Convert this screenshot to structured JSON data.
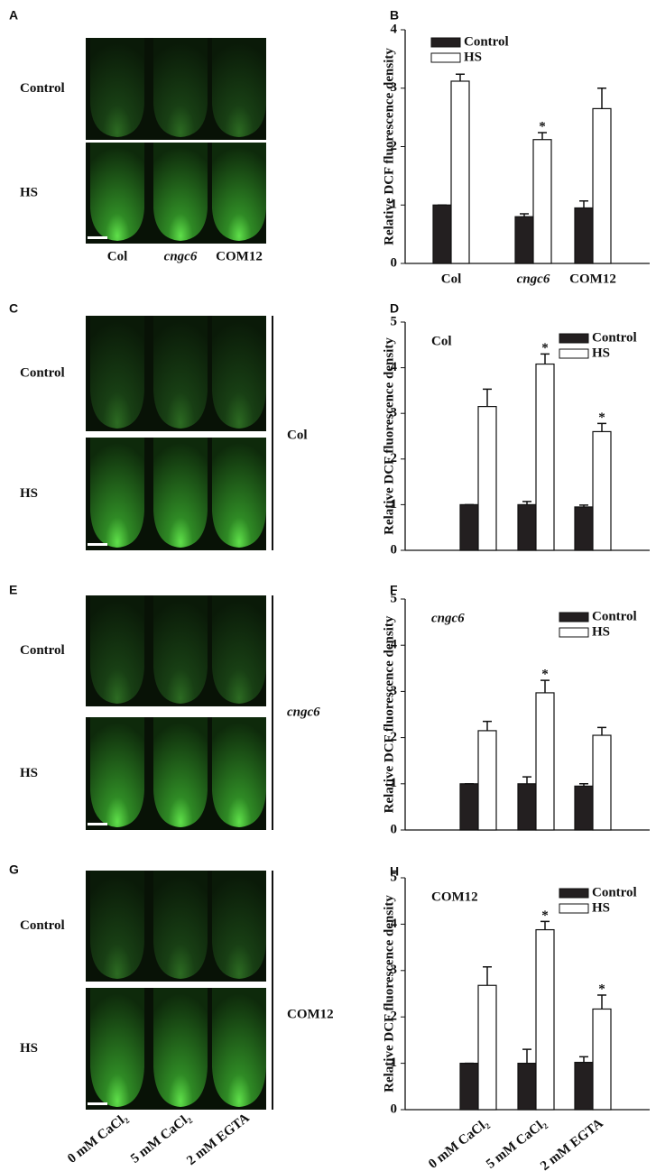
{
  "figure": {
    "image_panels": [
      {
        "letter": "A",
        "rows": [
          "Control",
          "HS"
        ],
        "columns": [
          "Col",
          "cngc6",
          "COM12"
        ]
      },
      {
        "letter": "C",
        "rows": [
          "Control",
          "HS"
        ],
        "side": "Col"
      },
      {
        "letter": "E",
        "rows": [
          "Control",
          "HS"
        ],
        "side": "cngc6"
      },
      {
        "letter": "G",
        "rows": [
          "Control",
          "HS"
        ],
        "side": "COM12",
        "columns": [
          "0 mM CaCl₂",
          "5 mM CaCl₂",
          "2 mM EGTA"
        ]
      }
    ]
  },
  "chart_data": [
    {
      "letter": "B",
      "type": "bar",
      "ylabel": "Relative DCF fluorescence density",
      "categories": [
        "Col",
        "cngc6",
        "COM12"
      ],
      "ylim": [
        0,
        4
      ],
      "yticks": [
        0,
        1,
        2,
        3,
        4
      ],
      "series": [
        {
          "name": "Control",
          "color": "#231f20",
          "values": [
            1,
            0.8,
            0.95
          ],
          "errors": [
            0,
            0.05,
            0.12
          ],
          "markers": [
            null,
            null,
            null
          ]
        },
        {
          "name": "HS",
          "color": "#ffffff",
          "values": [
            3.12,
            2.12,
            2.65
          ],
          "errors": [
            0.12,
            0.12,
            0.35
          ],
          "markers": [
            null,
            "*",
            null
          ]
        }
      ]
    },
    {
      "letter": "D",
      "type": "bar",
      "title": "Col",
      "ylabel": "Relative DCF fluorescence density",
      "categories": [
        null,
        null,
        null
      ],
      "ylim": [
        0,
        5
      ],
      "yticks": [
        0,
        1,
        2,
        3,
        4,
        5
      ],
      "series": [
        {
          "name": "Control",
          "color": "#231f20",
          "values": [
            1,
            1,
            0.95
          ],
          "errors": [
            0,
            0.07,
            0.04
          ],
          "markers": [
            null,
            null,
            null
          ]
        },
        {
          "name": "HS",
          "color": "#ffffff",
          "values": [
            3.15,
            4.08,
            2.6
          ],
          "errors": [
            0.38,
            0.22,
            0.18
          ],
          "markers": [
            null,
            "*",
            "*"
          ]
        }
      ]
    },
    {
      "letter": "F",
      "type": "bar",
      "title": "cngc6",
      "ylabel": "Relative DCF fluorescence density",
      "categories": [
        null,
        null,
        null
      ],
      "ylim": [
        0,
        5
      ],
      "yticks": [
        0,
        1,
        2,
        3,
        4,
        5
      ],
      "series": [
        {
          "name": "Control",
          "color": "#231f20",
          "values": [
            1,
            1,
            0.95
          ],
          "errors": [
            0,
            0.15,
            0.05
          ],
          "markers": [
            null,
            null,
            null
          ]
        },
        {
          "name": "HS",
          "color": "#ffffff",
          "values": [
            2.15,
            2.97,
            2.05
          ],
          "errors": [
            0.2,
            0.27,
            0.17
          ],
          "markers": [
            null,
            "*",
            null
          ]
        }
      ]
    },
    {
      "letter": "H",
      "type": "bar",
      "title": "COM12",
      "ylabel": "Relative DCF fluorescence density",
      "categories": [
        "0 mM CaCl₂",
        "5 mM CaCl₂",
        "2 mM EGTA"
      ],
      "ylim": [
        0,
        5
      ],
      "yticks": [
        0,
        1,
        2,
        3,
        4,
        5
      ],
      "series": [
        {
          "name": "Control",
          "color": "#231f20",
          "values": [
            1,
            1,
            1.02
          ],
          "errors": [
            0,
            0.3,
            0.12
          ],
          "markers": [
            null,
            null,
            null
          ]
        },
        {
          "name": "HS",
          "color": "#ffffff",
          "values": [
            2.68,
            3.88,
            2.17
          ],
          "errors": [
            0.4,
            0.18,
            0.3
          ],
          "markers": [
            null,
            "*",
            "*"
          ]
        }
      ]
    }
  ]
}
